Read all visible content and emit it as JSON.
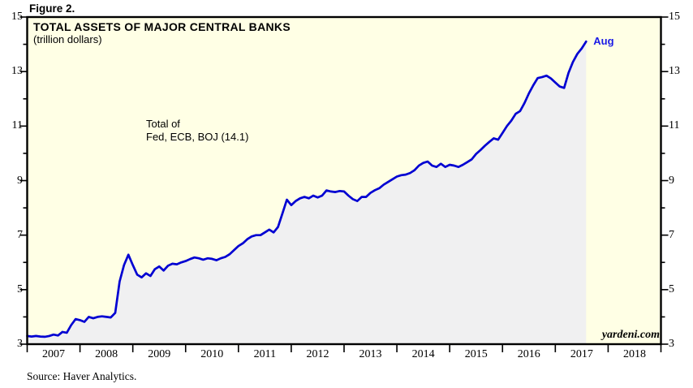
{
  "figure": {
    "label": "Figure 2."
  },
  "header": {
    "title": "TOTAL ASSETS OF MAJOR CENTRAL BANKS",
    "subtitle": "(trillion dollars)"
  },
  "annotation": {
    "line1": "Total of",
    "line2": "Fed, ECB, BOJ (14.1)"
  },
  "endpoint_label": "Aug",
  "watermark": "yardeni.com",
  "source": "Source: Haver Analytics.",
  "colors": {
    "line": "#0000d2",
    "endpoint_label": "#1a1ae6",
    "area_fill": "#f0f0f1",
    "plot_background": "#ffffe5",
    "frame": "#000000",
    "page_background": "#ffffff"
  },
  "chart_data": {
    "type": "area",
    "title": "TOTAL ASSETS OF MAJOR CENTRAL BANKS",
    "subtitle": "(trillion dollars)",
    "xlabel": "",
    "ylabel": "trillion dollars",
    "grid": false,
    "xlim": [
      2007,
      2019
    ],
    "ylim": [
      3,
      15
    ],
    "y_major_ticks": [
      15,
      13,
      11,
      9,
      7,
      5,
      3
    ],
    "y_minor_ticks": [
      14,
      12,
      10,
      8,
      6,
      4
    ],
    "x_year_labels": [
      "2007",
      "2008",
      "2009",
      "2010",
      "2011",
      "2012",
      "2013",
      "2014",
      "2015",
      "2016",
      "2017",
      "2018"
    ],
    "last_point_label": "Aug",
    "last_value": 14.1,
    "series": [
      {
        "name": "Total of Fed, ECB, BOJ",
        "frequency": "monthly",
        "start": "2007-01",
        "end": "2017-08",
        "values": [
          3.3,
          3.28,
          3.3,
          3.28,
          3.27,
          3.3,
          3.35,
          3.32,
          3.45,
          3.42,
          3.7,
          3.92,
          3.88,
          3.82,
          4.0,
          3.95,
          4.0,
          4.02,
          4.0,
          3.98,
          4.15,
          5.3,
          5.9,
          6.28,
          5.9,
          5.55,
          5.45,
          5.6,
          5.5,
          5.75,
          5.85,
          5.7,
          5.88,
          5.95,
          5.93,
          6.0,
          6.05,
          6.12,
          6.18,
          6.15,
          6.1,
          6.15,
          6.13,
          6.08,
          6.15,
          6.2,
          6.3,
          6.45,
          6.6,
          6.7,
          6.85,
          6.95,
          7.0,
          7.0,
          7.1,
          7.2,
          7.1,
          7.3,
          7.8,
          8.3,
          8.1,
          8.25,
          8.35,
          8.4,
          8.35,
          8.45,
          8.38,
          8.45,
          8.64,
          8.6,
          8.58,
          8.62,
          8.6,
          8.45,
          8.32,
          8.25,
          8.4,
          8.4,
          8.55,
          8.65,
          8.72,
          8.85,
          8.95,
          9.05,
          9.15,
          9.2,
          9.22,
          9.28,
          9.38,
          9.55,
          9.65,
          9.7,
          9.55,
          9.5,
          9.62,
          9.5,
          9.58,
          9.55,
          9.5,
          9.58,
          9.68,
          9.78,
          9.98,
          10.12,
          10.28,
          10.42,
          10.55,
          10.5,
          10.75,
          11.0,
          11.2,
          11.45,
          11.55,
          11.85,
          12.2,
          12.5,
          12.76,
          12.8,
          12.85,
          12.75,
          12.6,
          12.45,
          12.4,
          12.95,
          13.35,
          13.65,
          13.85,
          14.1
        ]
      }
    ]
  }
}
